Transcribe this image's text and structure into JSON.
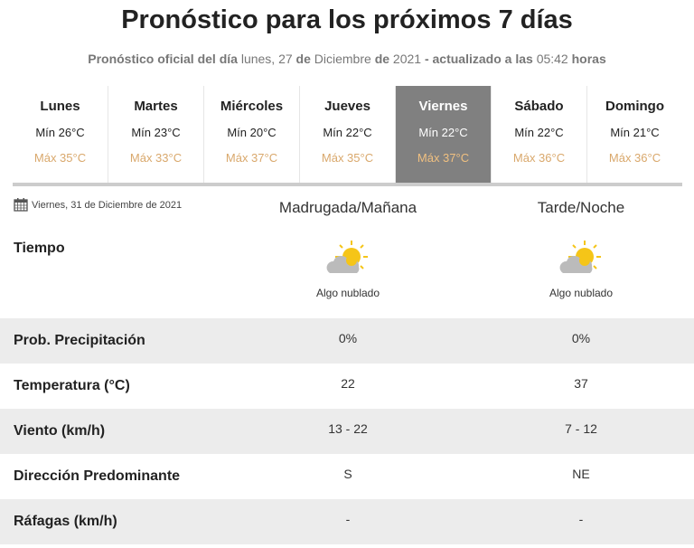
{
  "header": {
    "title": "Pronóstico para los próximos 7 días",
    "subtitle": {
      "p1": "Pronóstico oficial del día",
      "p2": "lunes, 27",
      "p3": "de",
      "p4": "Diciembre",
      "p5": "de",
      "p6": "2021",
      "p7": "- actualizado a las",
      "p8": "05:42",
      "p9": "horas"
    }
  },
  "days": [
    {
      "name": "Lunes",
      "min": "Mín 26°C",
      "max": "Máx 35°C"
    },
    {
      "name": "Martes",
      "min": "Mín 23°C",
      "max": "Máx 33°C"
    },
    {
      "name": "Miércoles",
      "min": "Mín 20°C",
      "max": "Máx 37°C"
    },
    {
      "name": "Jueves",
      "min": "Mín 22°C",
      "max": "Máx 35°C"
    },
    {
      "name": "Viernes",
      "min": "Mín 22°C",
      "max": "Máx 37°C",
      "selected": true
    },
    {
      "name": "Sábado",
      "min": "Mín 22°C",
      "max": "Máx 36°C"
    },
    {
      "name": "Domingo",
      "min": "Mín 21°C",
      "max": "Máx 36°C"
    }
  ],
  "detail": {
    "date": "Viernes, 31 de Diciembre de 2021",
    "col1": "Madrugada/Mañana",
    "col2": "Tarde/Noche",
    "weather_label": "Tiempo",
    "weather1": "Algo nublado",
    "weather2": "Algo nublado",
    "weather_icon": "sun-behind-cloud-icon",
    "rows": [
      {
        "label": "Prob. Precipitación",
        "v1": "0%",
        "v2": "0%"
      },
      {
        "label": "Temperatura (°C)",
        "v1": "22",
        "v2": "37"
      },
      {
        "label": "Viento (km/h)",
        "v1": "13 - 22",
        "v2": "7 - 12"
      },
      {
        "label": "Dirección Predominante",
        "v1": "S",
        "v2": "NE"
      },
      {
        "label": "Ráfagas (km/h)",
        "v1": "-",
        "v2": "-"
      }
    ]
  },
  "colors": {
    "selected_bg": "#808080",
    "max_temp": "#d9a86c",
    "sun": "#f5c518",
    "cloud": "#bbbbbb"
  }
}
